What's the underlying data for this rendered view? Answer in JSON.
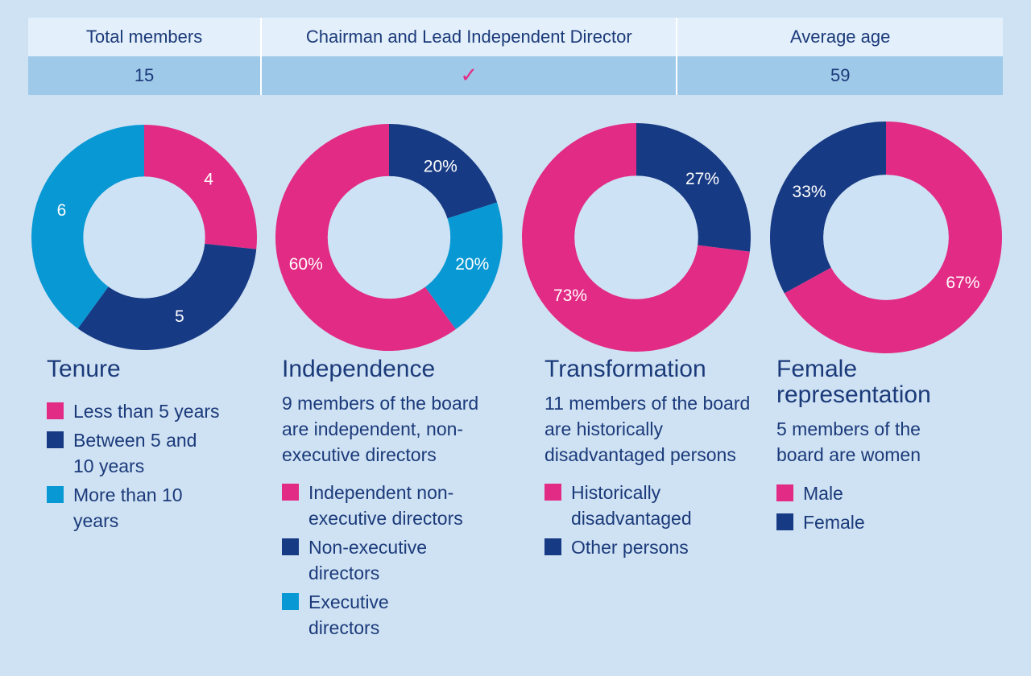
{
  "summary": {
    "headers": [
      "Total members",
      "Chairman and Lead Independent Director",
      "Average age"
    ],
    "values": [
      "15",
      "✓",
      "59"
    ]
  },
  "colors": {
    "pink": "#e22b84",
    "navy": "#173a84",
    "blue": "#0898d4",
    "hole": "#cde2f4",
    "background": "#cfe2f3",
    "table_header": "#e3effa",
    "table_values": "#9fc9e9"
  },
  "panels": [
    {
      "title": "Tenure",
      "description": "",
      "legend": [
        "Less than 5 years",
        "Between 5 and 10 years",
        "More than 10 years"
      ]
    },
    {
      "title": "Independence",
      "description": "9 members of the board are independent, non-executive directors",
      "legend": [
        "Independent non-executive directors",
        "Non-executive directors",
        "Executive directors"
      ]
    },
    {
      "title": "Transformation",
      "description": "11 members of the board are historically disadvantaged persons",
      "legend": [
        "Historically disadvantaged",
        "Other persons"
      ]
    },
    {
      "title": "Female representation",
      "description": "5 members of the board are women",
      "legend": [
        "Male",
        "Female"
      ]
    }
  ],
  "chart_data": [
    {
      "type": "pie",
      "categories": [
        "Less than 5 years",
        "Between 5 and 10 years",
        "More than 10 years"
      ],
      "values": [
        4,
        5,
        6
      ],
      "labels": [
        "4",
        "5",
        "6"
      ],
      "colors": [
        "#e22b84",
        "#173a84",
        "#0898d4"
      ]
    },
    {
      "type": "pie",
      "categories": [
        "Non-executive directors",
        "Executive directors",
        "Independent non-executive directors"
      ],
      "values": [
        20,
        20,
        60
      ],
      "labels": [
        "20%",
        "20%",
        "60%"
      ],
      "colors": [
        "#173a84",
        "#0898d4",
        "#e22b84"
      ]
    },
    {
      "type": "pie",
      "categories": [
        "Other persons",
        "Historically disadvantaged"
      ],
      "values": [
        27,
        73
      ],
      "labels": [
        "27%",
        "73%"
      ],
      "colors": [
        "#173a84",
        "#e22b84"
      ]
    },
    {
      "type": "pie",
      "categories": [
        "Male",
        "Female"
      ],
      "values": [
        67,
        33
      ],
      "labels": [
        "67%",
        "33%"
      ],
      "colors": [
        "#e22b84",
        "#173a84"
      ]
    }
  ]
}
